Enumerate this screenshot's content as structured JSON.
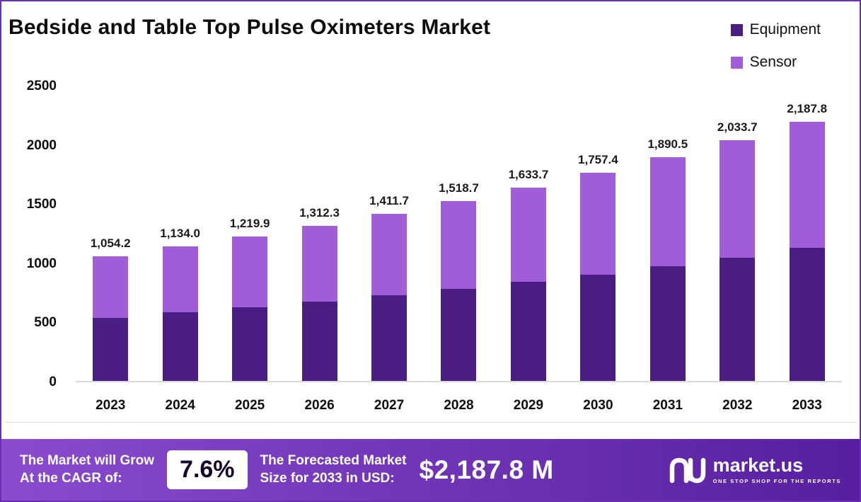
{
  "title": "Bedside and Table Top Pulse Oximeters Market",
  "legend": [
    {
      "label": "Equipment",
      "color": "#4a1d82"
    },
    {
      "label": "Sensor",
      "color": "#a15cd8"
    }
  ],
  "chart_data": {
    "type": "bar",
    "stacked": true,
    "title": "Bedside and Table Top Pulse Oximeters Market",
    "categories": [
      "2023",
      "2024",
      "2025",
      "2026",
      "2027",
      "2028",
      "2029",
      "2030",
      "2031",
      "2032",
      "2033"
    ],
    "series": [
      {
        "name": "Equipment",
        "color": "#4a1d82",
        "values": [
          535,
          578,
          622,
          668,
          722,
          778,
          840,
          900,
          968,
          1040,
          1122
        ]
      },
      {
        "name": "Sensor",
        "color": "#a15cd8",
        "values": [
          519.2,
          556.0,
          597.9,
          644.3,
          689.7,
          740.7,
          793.7,
          857.4,
          922.5,
          993.7,
          1065.8
        ]
      }
    ],
    "totals": [
      1054.2,
      1134.0,
      1219.9,
      1312.3,
      1411.7,
      1518.7,
      1633.7,
      1757.4,
      1890.5,
      2033.7,
      2187.8
    ],
    "total_labels": [
      "1,054.2",
      "1,134.0",
      "1,219.9",
      "1,312.3",
      "1,411.7",
      "1,518.7",
      "1,633.7",
      "1,757.4",
      "1,890.5",
      "2,033.7",
      "2,187.8"
    ],
    "xlabel": "",
    "ylabel": "",
    "ylim": [
      0,
      2500
    ],
    "yticks": [
      0,
      500,
      1000,
      1500,
      2000,
      2500
    ],
    "grid": false,
    "legend_position": "top-right"
  },
  "banner": {
    "cagr_label_line1": "The Market will Grow",
    "cagr_label_line2": "At the CAGR of:",
    "cagr_value": "7.6%",
    "forecast_label_line1": "The Forecasted Market",
    "forecast_label_line2": "Size for 2033 in USD:",
    "forecast_value": "$2,187.8 M",
    "brand": "market.us",
    "tagline": "ONE STOP SHOP FOR THE REPORTS"
  },
  "colors": {
    "border": "#6a2fb5",
    "banner_gradient_from": "#8a4bcf",
    "banner_gradient_to": "#571fa0",
    "equipment": "#4a1d82",
    "sensor": "#a15cd8"
  }
}
